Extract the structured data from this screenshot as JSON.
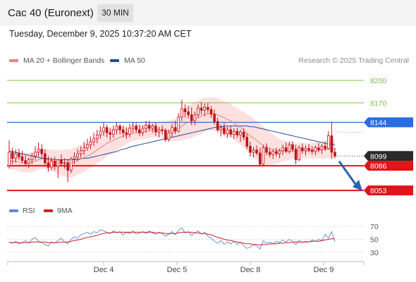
{
  "header": {
    "title": "Cac 40 (Euronext)",
    "timeframe": "30 MIN",
    "datetime": "Tuesday, December 9, 2025 10:37:20 AM CET"
  },
  "legend": {
    "ma20": "MA 20 + Bollinger Bands",
    "ma50": "MA 50",
    "credit": "Research © 2025 Trading Central",
    "rsi": "RSI",
    "rsi_ma": "9MA"
  },
  "colors": {
    "ma20": "#f08080",
    "ma50": "#1e4f91",
    "band_fill": "#fde0e0",
    "candle": "#c0141a",
    "green_level": "#7cc04b",
    "blue_level": "#2a6de0",
    "red_level": "#e0141a",
    "current_price": "#2a2a2a",
    "arrow": "#2b63b0",
    "rsi": "#5b8ad8",
    "rsi_ma": "#d42020"
  },
  "chart_data": {
    "type": "candlestick",
    "x_tick_labels": [
      "Dec 4",
      "Dec 5",
      "Dec 8",
      "Dec 9"
    ],
    "y_range": [
      8040,
      8215
    ],
    "levels": [
      {
        "value": 8200,
        "label": "8200",
        "kind": "green"
      },
      {
        "value": 8170,
        "label": "8170",
        "kind": "green"
      },
      {
        "value": 8144,
        "label": "8144",
        "kind": "blue"
      },
      {
        "value": 8099,
        "label": "8099",
        "kind": "current"
      },
      {
        "value": 8086,
        "label": "8086",
        "kind": "red"
      },
      {
        "value": 8053,
        "label": "8053",
        "kind": "red"
      }
    ],
    "candles": [
      [
        8086,
        8120,
        8082,
        8104
      ],
      [
        8104,
        8110,
        8088,
        8096
      ],
      [
        8096,
        8108,
        8090,
        8102
      ],
      [
        8102,
        8109,
        8094,
        8098
      ],
      [
        8098,
        8106,
        8090,
        8093
      ],
      [
        8093,
        8101,
        8085,
        8089
      ],
      [
        8089,
        8097,
        8083,
        8094
      ],
      [
        8094,
        8103,
        8088,
        8099
      ],
      [
        8099,
        8112,
        8093,
        8104
      ],
      [
        8104,
        8117,
        8098,
        8108
      ],
      [
        8108,
        8115,
        8096,
        8102
      ],
      [
        8102,
        8108,
        8086,
        8090
      ],
      [
        8090,
        8099,
        8078,
        8084
      ],
      [
        8084,
        8097,
        8080,
        8092
      ],
      [
        8092,
        8098,
        8080,
        8085
      ],
      [
        8085,
        8093,
        8070,
        8094
      ],
      [
        8094,
        8101,
        8086,
        8089
      ],
      [
        8089,
        8096,
        8082,
        8090
      ],
      [
        8090,
        8095,
        8064,
        8080
      ],
      [
        8080,
        8098,
        8076,
        8095
      ],
      [
        8095,
        8104,
        8088,
        8098
      ],
      [
        8098,
        8108,
        8092,
        8102
      ],
      [
        8102,
        8112,
        8096,
        8106
      ],
      [
        8106,
        8118,
        8100,
        8110
      ],
      [
        8110,
        8122,
        8106,
        8114
      ],
      [
        8114,
        8125,
        8108,
        8118
      ],
      [
        8118,
        8130,
        8112,
        8122
      ],
      [
        8122,
        8134,
        8116,
        8127
      ],
      [
        8127,
        8139,
        8122,
        8132
      ],
      [
        8132,
        8144,
        8126,
        8137
      ],
      [
        8137,
        8141,
        8124,
        8130
      ],
      [
        8130,
        8137,
        8120,
        8128
      ],
      [
        8128,
        8140,
        8123,
        8134
      ],
      [
        8134,
        8144,
        8128,
        8139
      ],
      [
        8139,
        8142,
        8128,
        8134
      ],
      [
        8134,
        8140,
        8124,
        8130
      ],
      [
        8130,
        8137,
        8122,
        8128
      ],
      [
        8128,
        8142,
        8124,
        8136
      ],
      [
        8136,
        8144,
        8130,
        8139
      ],
      [
        8139,
        8143,
        8130,
        8134
      ],
      [
        8134,
        8141,
        8126,
        8130
      ],
      [
        8130,
        8140,
        8126,
        8136
      ],
      [
        8136,
        8146,
        8130,
        8140
      ],
      [
        8140,
        8146,
        8133,
        8136
      ],
      [
        8136,
        8142,
        8130,
        8139
      ],
      [
        8139,
        8143,
        8126,
        8131
      ],
      [
        8131,
        8138,
        8124,
        8134
      ],
      [
        8134,
        8140,
        8128,
        8133
      ],
      [
        8133,
        8136,
        8118,
        8121
      ],
      [
        8121,
        8134,
        8118,
        8130
      ],
      [
        8130,
        8142,
        8124,
        8137
      ],
      [
        8137,
        8146,
        8128,
        8132
      ],
      [
        8132,
        8156,
        8130,
        8151
      ],
      [
        8151,
        8174,
        8146,
        8162
      ],
      [
        8162,
        8168,
        8150,
        8158
      ],
      [
        8158,
        8166,
        8149,
        8154
      ],
      [
        8154,
        8164,
        8140,
        8146
      ],
      [
        8146,
        8158,
        8140,
        8154
      ],
      [
        8154,
        8168,
        8150,
        8163
      ],
      [
        8163,
        8171,
        8154,
        8160
      ],
      [
        8160,
        8169,
        8152,
        8164
      ],
      [
        8164,
        8170,
        8156,
        8161
      ],
      [
        8161,
        8166,
        8150,
        8155
      ],
      [
        8155,
        8161,
        8141,
        8145
      ],
      [
        8145,
        8150,
        8131,
        8134
      ],
      [
        8134,
        8141,
        8125,
        8137
      ],
      [
        8137,
        8143,
        8126,
        8129
      ],
      [
        8129,
        8138,
        8123,
        8134
      ],
      [
        8134,
        8139,
        8124,
        8128
      ],
      [
        8128,
        8136,
        8122,
        8132
      ],
      [
        8132,
        8137,
        8123,
        8127
      ],
      [
        8127,
        8134,
        8118,
        8131
      ],
      [
        8131,
        8136,
        8120,
        8124
      ],
      [
        8124,
        8129,
        8108,
        8112
      ],
      [
        8112,
        8118,
        8098,
        8104
      ],
      [
        8104,
        8111,
        8097,
        8107
      ],
      [
        8107,
        8113,
        8100,
        8103
      ],
      [
        8103,
        8110,
        8085,
        8088
      ],
      [
        8088,
        8114,
        8086,
        8110
      ],
      [
        8110,
        8116,
        8100,
        8104
      ],
      [
        8104,
        8109,
        8097,
        8101
      ],
      [
        8101,
        8108,
        8095,
        8105
      ],
      [
        8105,
        8110,
        8098,
        8102
      ],
      [
        8102,
        8109,
        8096,
        8106
      ],
      [
        8106,
        8114,
        8100,
        8110
      ],
      [
        8110,
        8117,
        8103,
        8105
      ],
      [
        8105,
        8118,
        8102,
        8114
      ],
      [
        8114,
        8119,
        8104,
        8108
      ],
      [
        8108,
        8114,
        8088,
        8094
      ],
      [
        8094,
        8113,
        8092,
        8110
      ],
      [
        8110,
        8116,
        8102,
        8106
      ],
      [
        8106,
        8113,
        8100,
        8109
      ],
      [
        8109,
        8115,
        8104,
        8107
      ],
      [
        8107,
        8112,
        8101,
        8105
      ],
      [
        8105,
        8113,
        8100,
        8110
      ],
      [
        8110,
        8116,
        8104,
        8107
      ],
      [
        8107,
        8115,
        8102,
        8112
      ],
      [
        8112,
        8118,
        8106,
        8109
      ],
      [
        8109,
        8132,
        8108,
        8126
      ],
      [
        8126,
        8144,
        8096,
        8104
      ],
      [
        8104,
        8110,
        8096,
        8099
      ]
    ],
    "ma20": [
      8093,
      8092,
      8092,
      8091,
      8090,
      8090,
      8090,
      8091,
      8092,
      8094,
      8095,
      8095,
      8094,
      8093,
      8092,
      8091,
      8090,
      8090,
      8089,
      8089,
      8091,
      8093,
      8095,
      8097,
      8099,
      8101,
      8104,
      8107,
      8110,
      8113,
      8116,
      8118,
      8120,
      8122,
      8124,
      8125,
      8127,
      8128,
      8129,
      8130,
      8131,
      8131,
      8132,
      8133,
      8134,
      8134,
      8134,
      8134,
      8133,
      8133,
      8133,
      8134,
      8136,
      8139,
      8142,
      8144,
      8146,
      8148,
      8150,
      8152,
      8154,
      8155,
      8155,
      8155,
      8154,
      8152,
      8150,
      8148,
      8146,
      8143,
      8140,
      8137,
      8134,
      8130,
      8126,
      8123,
      8120,
      8116,
      8113,
      8111,
      8109,
      8108,
      8107,
      8106,
      8106,
      8106,
      8106,
      8106,
      8106,
      8106,
      8106,
      8106,
      8106,
      8106,
      8107,
      8107,
      8107,
      8108,
      8108,
      8108,
      8108
    ],
    "ma20_band": [
      10,
      11,
      11,
      12,
      12,
      13,
      13,
      13,
      13,
      13,
      13,
      13,
      14,
      14,
      15,
      16,
      17,
      18,
      19,
      19,
      19,
      19,
      19,
      19,
      18,
      18,
      18,
      18,
      18,
      18,
      17,
      17,
      16,
      15,
      14,
      13,
      12,
      11,
      10,
      10,
      10,
      10,
      10,
      10,
      10,
      10,
      10,
      11,
      12,
      13,
      14,
      15,
      17,
      19,
      21,
      22,
      23,
      23,
      23,
      23,
      23,
      22,
      22,
      22,
      22,
      22,
      22,
      22,
      22,
      22,
      23,
      23,
      24,
      25,
      26,
      26,
      26,
      26,
      25,
      24,
      22,
      20,
      18,
      16,
      14,
      13,
      12,
      11,
      10,
      10,
      10,
      10,
      10,
      10,
      11,
      11,
      12,
      12,
      12,
      13,
      13
    ],
    "ma50": [
      8106,
      8105,
      8104,
      8103,
      8102,
      8101,
      8100,
      8099,
      8098,
      8097,
      8096,
      8096,
      8095,
      8095,
      8094,
      8094,
      8094,
      8094,
      8094,
      8094,
      8094,
      8095,
      8095,
      8096,
      8096,
      8097,
      8098,
      8099,
      8100,
      8101,
      8102,
      8103,
      8104,
      8105,
      8107,
      8108,
      8109,
      8111,
      8112,
      8113,
      8114,
      8115,
      8116,
      8117,
      8118,
      8119,
      8120,
      8121,
      8122,
      8123,
      8124,
      8125,
      8126,
      8127,
      8128,
      8129,
      8130,
      8131,
      8132,
      8133,
      8134,
      8135,
      8136,
      8137,
      8138,
      8138,
      8139,
      8139,
      8139,
      8139,
      8139,
      8139,
      8139,
      8139,
      8138,
      8138,
      8137,
      8136,
      8135,
      8134,
      8133,
      8132,
      8131,
      8130,
      8129,
      8128,
      8127,
      8126,
      8125,
      8124,
      8123,
      8122,
      8121,
      8120,
      8119,
      8118,
      8117,
      8116,
      8115,
      8115,
      8114
    ],
    "rsi_panel": {
      "y_range": [
        20,
        80
      ],
      "y_ticks": [
        70,
        50,
        30
      ],
      "rsi": [
        46,
        44,
        47,
        43,
        45,
        48,
        44,
        50,
        53,
        47,
        45,
        42,
        40,
        46,
        44,
        48,
        52,
        46,
        43,
        50,
        54,
        52,
        57,
        59,
        61,
        58,
        62,
        60,
        65,
        63,
        61,
        59,
        63,
        60,
        62,
        57,
        61,
        59,
        63,
        58,
        60,
        62,
        59,
        63,
        60,
        58,
        61,
        59,
        55,
        58,
        62,
        57,
        64,
        68,
        60,
        62,
        56,
        60,
        63,
        58,
        61,
        55,
        52,
        47,
        44,
        48,
        42,
        46,
        43,
        47,
        42,
        46,
        40,
        36,
        38,
        42,
        40,
        35,
        48,
        44,
        46,
        43,
        47,
        45,
        49,
        46,
        50,
        47,
        42,
        48,
        45,
        47,
        46,
        49,
        47,
        50,
        48,
        58,
        52,
        62,
        46
      ],
      "rsi_ma": [
        45,
        45,
        45,
        45,
        45,
        45,
        45,
        46,
        46,
        46,
        46,
        46,
        45,
        45,
        45,
        45,
        46,
        46,
        46,
        47,
        48,
        49,
        50,
        52,
        53,
        54,
        55,
        56,
        58,
        59,
        60,
        60,
        61,
        61,
        61,
        61,
        61,
        61,
        61,
        61,
        61,
        61,
        61,
        61,
        61,
        60,
        60,
        60,
        59,
        59,
        59,
        59,
        60,
        61,
        61,
        61,
        61,
        60,
        60,
        59,
        59,
        58,
        57,
        55,
        53,
        52,
        50,
        49,
        48,
        47,
        46,
        45,
        44,
        43,
        43,
        42,
        42,
        41,
        42,
        42,
        43,
        43,
        43,
        44,
        44,
        45,
        45,
        46,
        46,
        46,
        46,
        46,
        46,
        47,
        47,
        47,
        48,
        49,
        50,
        51,
        51
      ]
    }
  }
}
